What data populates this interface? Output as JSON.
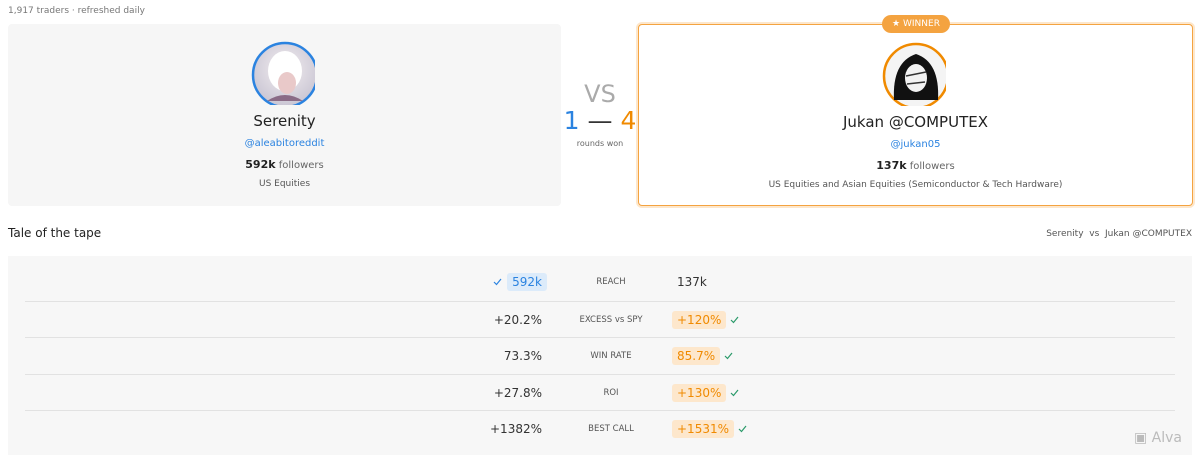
{
  "header": {
    "subtitle": "1,917 traders · refreshed daily"
  },
  "players": [
    {
      "name": "Serenity",
      "handle": "@aleabitoreddit",
      "followers": "592k",
      "followers_label": "followers",
      "markets": "US Equities"
    },
    {
      "name": "Jukan @COMPUTEX",
      "handle": "@jukan05",
      "followers": "137k",
      "followers_label": "followers",
      "markets": "US Equities and Asian Equities (Semiconductor & Tech Hardware)"
    }
  ],
  "versus": {
    "vs": "VS",
    "score_left": "1",
    "separator": "—",
    "score_right": "4",
    "label": "rounds won",
    "badge": "WINNER"
  },
  "tape": {
    "title": "Tale of the tape",
    "matchup": "Serenity  vs  Jukan @COMPUTEX",
    "rows": [
      {
        "left": "592k",
        "label": "REACH",
        "right": "137k",
        "winner": "left"
      },
      {
        "left": "+20.2%",
        "label": "EXCESS vs SPY",
        "right": "+120%",
        "winner": "right"
      },
      {
        "left": "73.3%",
        "label": "WIN RATE",
        "right": "85.7%",
        "winner": "right"
      },
      {
        "left": "+27.8%",
        "label": "ROI",
        "right": "+130%",
        "winner": "right"
      },
      {
        "left": "+1382%",
        "label": "BEST CALL",
        "right": "+1531%",
        "winner": "right"
      }
    ]
  },
  "brand": "Alva"
}
